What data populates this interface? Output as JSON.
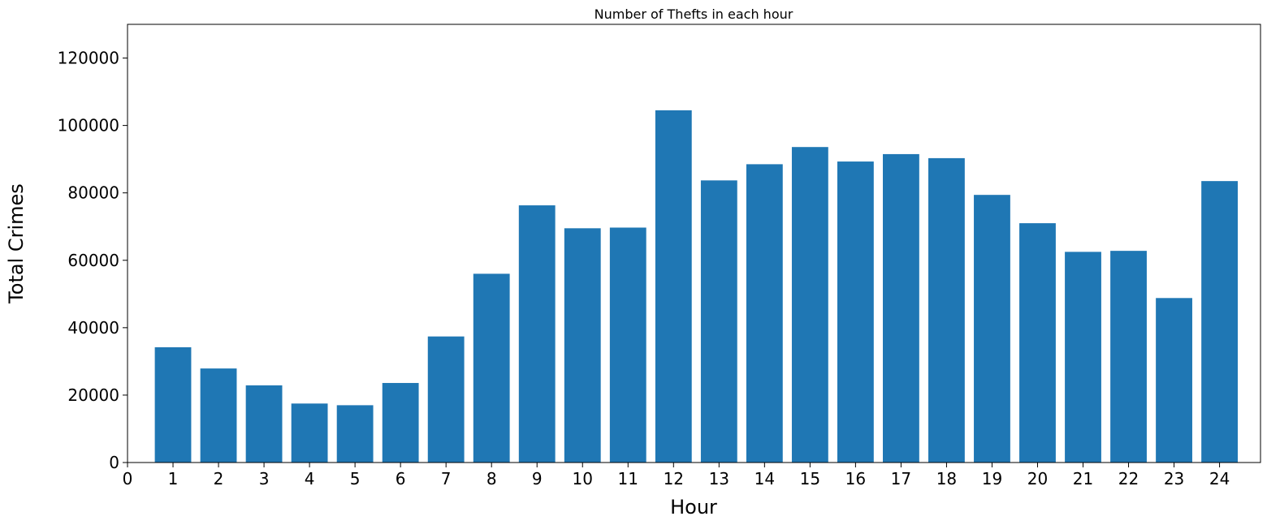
{
  "chart_data": {
    "type": "bar",
    "title": "Number of Thefts in each hour",
    "xlabel": "Hour",
    "ylabel": "Total Crimes",
    "categories": [
      1,
      2,
      3,
      4,
      5,
      6,
      7,
      8,
      9,
      10,
      11,
      12,
      13,
      14,
      15,
      16,
      17,
      18,
      19,
      20,
      21,
      22,
      23,
      24
    ],
    "values": [
      34200,
      27900,
      22900,
      17500,
      17000,
      23600,
      37400,
      56000,
      76300,
      69500,
      69700,
      104500,
      83700,
      88500,
      93600,
      89300,
      91500,
      90300,
      79400,
      71000,
      62500,
      62800,
      48800,
      83500
    ],
    "xticks": [
      0,
      1,
      2,
      3,
      4,
      5,
      6,
      7,
      8,
      9,
      10,
      11,
      12,
      13,
      14,
      15,
      16,
      17,
      18,
      19,
      20,
      21,
      22,
      23,
      24
    ],
    "yticks": [
      0,
      20000,
      40000,
      60000,
      80000,
      100000,
      120000
    ],
    "xlim": [
      0,
      24.9
    ],
    "ylim": [
      0,
      130000
    ],
    "bar_color": "#1f77b4",
    "grid": false
  }
}
